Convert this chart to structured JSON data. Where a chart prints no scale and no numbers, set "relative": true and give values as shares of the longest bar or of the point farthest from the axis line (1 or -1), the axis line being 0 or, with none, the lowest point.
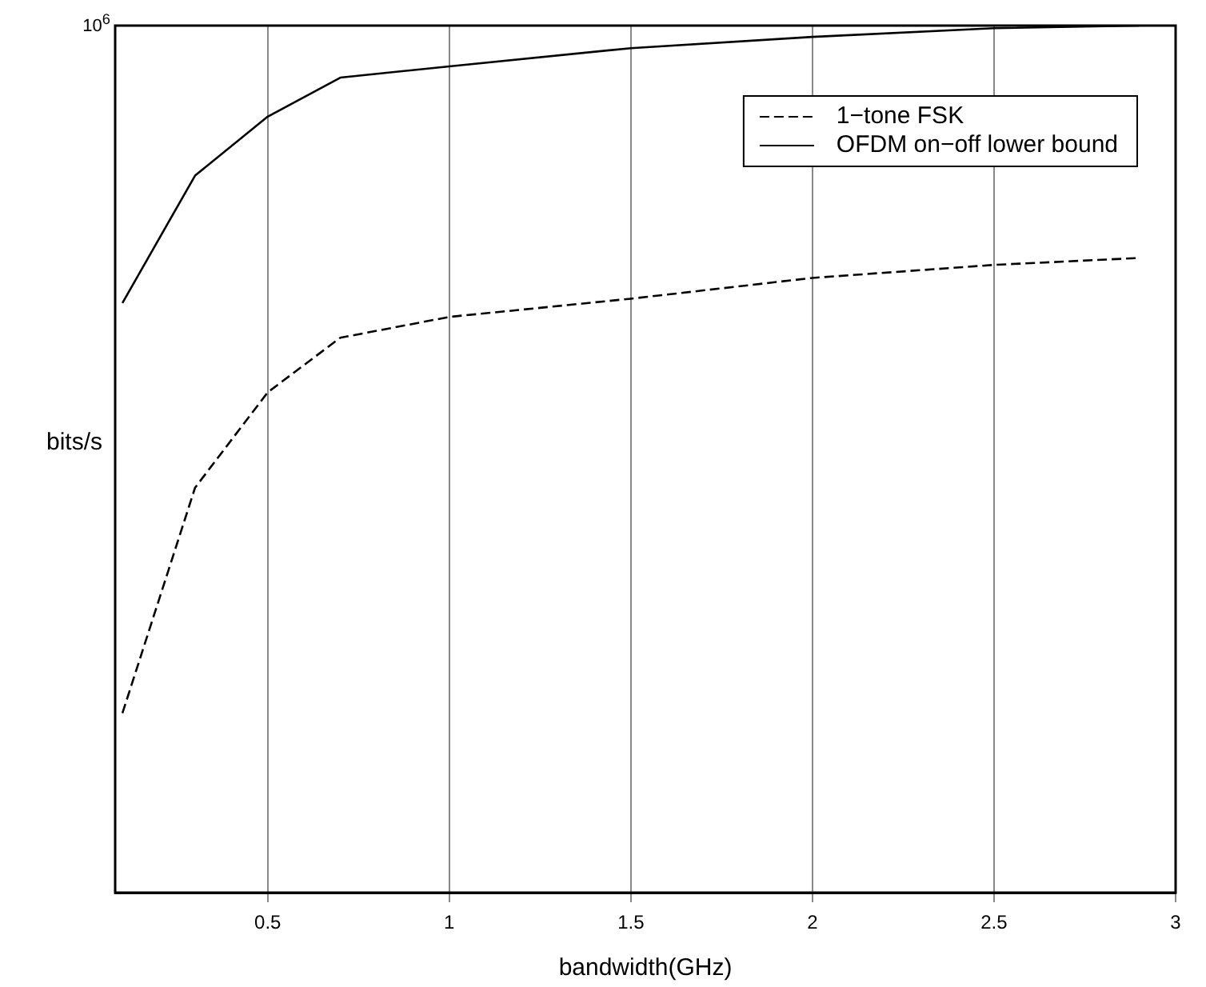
{
  "chart_data": {
    "type": "line",
    "xlabel": "bandwidth(GHz)",
    "ylabel": "bits/s",
    "relative": true,
    "xlim": [
      0.08,
      3
    ],
    "xticks": [
      0.5,
      1,
      1.5,
      2,
      2.5,
      3
    ],
    "grid": true,
    "legend": "top right",
    "marker": "none",
    "annotations": [
      "10$^{6}$"
    ],
    "x": [
      0.1,
      0.3,
      0.5,
      0.7,
      1.0,
      1.5,
      2.0,
      2.5,
      2.9
    ],
    "series": [
      {
        "name": "1−tone FSK",
        "color": "#000000",
        "line_style": "dashed",
        "values": [
          0.207,
          0.467,
          0.577,
          0.64,
          0.664,
          0.685,
          0.709,
          0.724,
          0.732
        ]
      },
      {
        "name": "OFDM on−off lower bound",
        "color": "#000000",
        "line_style": "solid",
        "values": [
          0.68,
          0.827,
          0.895,
          0.94,
          0.953,
          0.974,
          0.987,
          0.997,
          1
        ]
      }
    ]
  }
}
